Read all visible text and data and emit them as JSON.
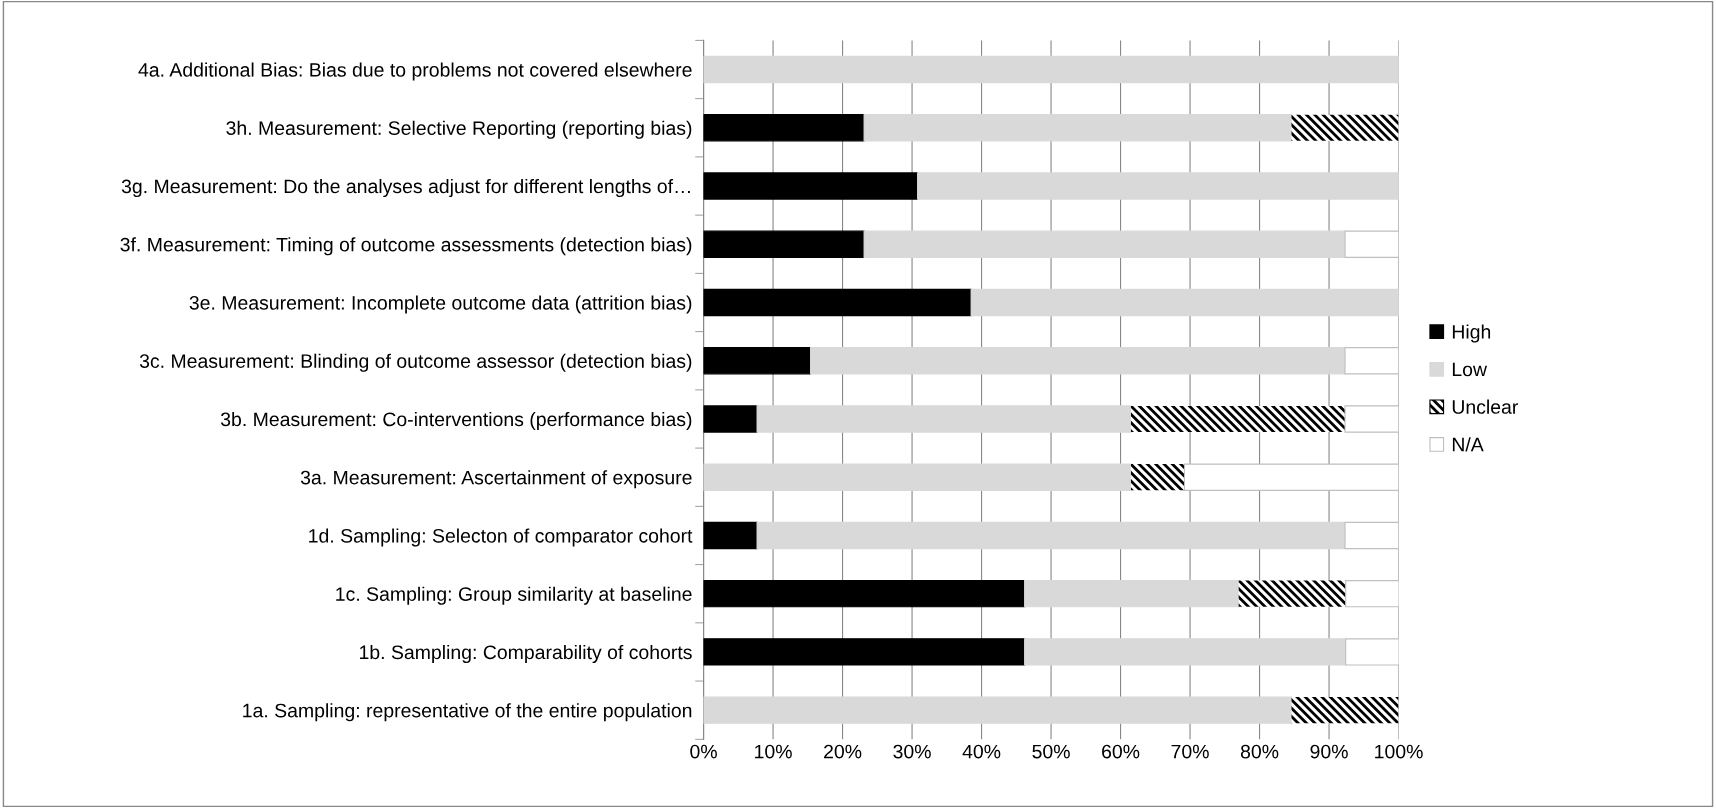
{
  "chart_data": {
    "type": "bar",
    "orientation": "horizontal",
    "stacked": true,
    "categories": [
      "4a. Additional Bias: Bias due to problems not covered elsewhere",
      "3h. Measurement: Selective Reporting (reporting bias)",
      "3g. Measurement: Do the analyses adjust for different lengths of…",
      "3f. Measurement: Timing of outcome assessments (detection bias)",
      "3e. Measurement: Incomplete outcome data (attrition bias)",
      "3c. Measurement: Blinding of outcome assessor (detection bias)",
      "3b. Measurement: Co-interventions (performance bias)",
      "3a. Measurement: Ascertainment of exposure",
      "1d. Sampling: Selecton of comparator cohort",
      "1c. Sampling: Group similarity at baseline",
      "1b. Sampling: Comparability of cohorts",
      "1a. Sampling: representative of the entire population"
    ],
    "series": [
      {
        "name": "High",
        "color": "#000000",
        "values": [
          0,
          23.1,
          30.8,
          23.1,
          38.5,
          15.4,
          7.7,
          0,
          7.7,
          46.2,
          46.2,
          0
        ]
      },
      {
        "name": "Low",
        "color": "#d9d9d9",
        "values": [
          100,
          61.5,
          69.2,
          69.2,
          61.5,
          76.9,
          53.8,
          61.5,
          84.6,
          30.8,
          46.2,
          84.6
        ]
      },
      {
        "name": "Unclear",
        "color": "#000000",
        "values": [
          0,
          15.4,
          0,
          0,
          0,
          0,
          30.8,
          7.7,
          0,
          15.4,
          0,
          15.4
        ]
      },
      {
        "name": "N/A",
        "color": "#ffffff",
        "values": [
          0,
          0,
          0,
          7.7,
          0,
          7.7,
          7.7,
          30.8,
          7.7,
          7.7,
          7.7,
          0
        ]
      }
    ],
    "xlim": [
      0,
      100
    ],
    "xticks": [
      {
        "value": 0,
        "label": "0%"
      },
      {
        "value": 10,
        "label": "10%"
      },
      {
        "value": 20,
        "label": "20%"
      },
      {
        "value": 30,
        "label": "30%"
      },
      {
        "value": 40,
        "label": "40%"
      },
      {
        "value": 50,
        "label": "50%"
      },
      {
        "value": 60,
        "label": "60%"
      },
      {
        "value": 70,
        "label": "70%"
      },
      {
        "value": 80,
        "label": "80%"
      },
      {
        "value": 90,
        "label": "90%"
      },
      {
        "value": 100,
        "label": "100%"
      }
    ],
    "grid": "x",
    "legend": "right"
  }
}
